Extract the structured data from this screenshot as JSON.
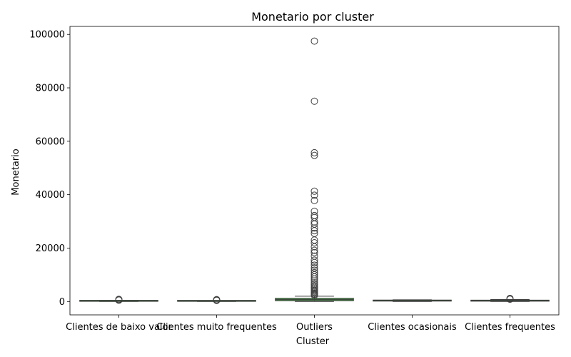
{
  "chart_data": {
    "type": "box",
    "title": "Monetario por cluster",
    "xlabel": "Cluster",
    "ylabel": "Monetario",
    "ylim": [
      -5000,
      103000
    ],
    "yticks": [
      0,
      20000,
      40000,
      60000,
      80000,
      100000
    ],
    "ytick_labels": [
      "0",
      "20000",
      "40000",
      "60000",
      "80000",
      "100000"
    ],
    "grid": false,
    "legend": "none",
    "categories": [
      "Clientes de baixo valor",
      "Clientes muito frequentes",
      "Outliers",
      "Clientes ocasionais",
      "Clientes frequentes"
    ],
    "boxes": [
      {
        "category": "Clientes de baixo valor",
        "whisker_low": 0,
        "q1": 60,
        "median": 120,
        "q3": 200,
        "whisker_high": 400,
        "outliers": [
          500,
          650,
          800
        ]
      },
      {
        "category": "Clientes muito frequentes",
        "whisker_low": 0,
        "q1": 50,
        "median": 100,
        "q3": 170,
        "whisker_high": 330,
        "outliers": [
          420,
          550,
          700
        ]
      },
      {
        "category": "Outliers",
        "whisker_low": 20,
        "q1": 300,
        "median": 700,
        "q3": 1200,
        "whisker_high": 2000,
        "outliers": [
          2300,
          2700,
          3100,
          3500,
          3900,
          4300,
          4800,
          5300,
          5800,
          6400,
          7000,
          7700,
          8400,
          9200,
          10000,
          10800,
          11700,
          12600,
          13600,
          14600,
          15500,
          17000,
          18300,
          19200,
          20500,
          22000,
          23000,
          25500,
          26500,
          27500,
          29000,
          29800,
          31500,
          32200,
          33800,
          37800,
          39800,
          41300,
          54700,
          55700,
          75000,
          97500
        ]
      },
      {
        "category": "Clientes ocasionais",
        "whisker_low": 0,
        "q1": 150,
        "median": 280,
        "q3": 450,
        "whisker_high": 650,
        "outliers": []
      },
      {
        "category": "Clientes frequentes",
        "whisker_low": 0,
        "q1": 120,
        "median": 260,
        "q3": 420,
        "whisker_high": 750,
        "outliers": [
          850,
          1000,
          1150
        ]
      }
    ],
    "colors": {
      "box_fill": "#3a923a",
      "box_edge": "#3d3d3d",
      "median": "#3d3d3d",
      "axes": "#000000",
      "flier_edge": "#3d3d3d"
    }
  }
}
